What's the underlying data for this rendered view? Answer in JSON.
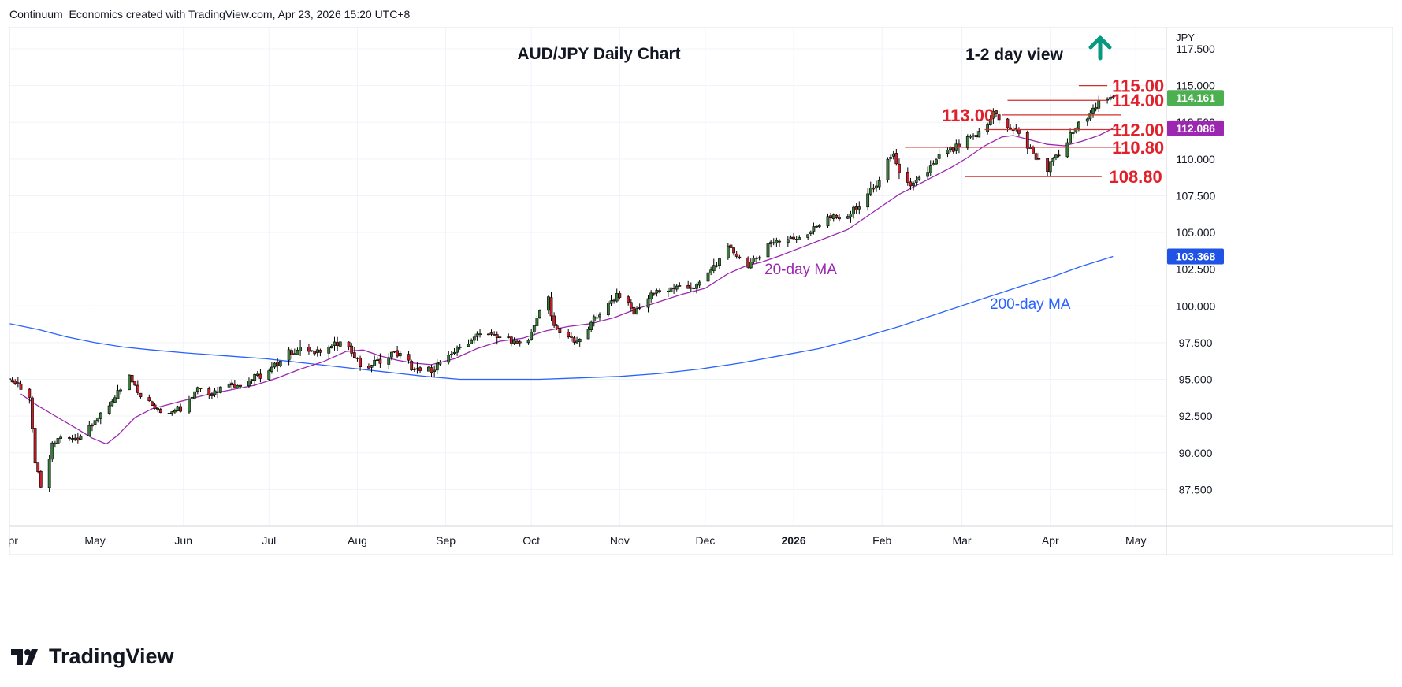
{
  "header": {
    "attribution": "Continuum_Economics created with TradingView.com, Apr 23, 2026 15:20 UTC+8"
  },
  "logo": {
    "text": "TradingView"
  },
  "colors": {
    "up": "#3a7d3a",
    "down": "#c8202a",
    "ma20": "#9c27b0",
    "ma200": "#2962ff",
    "level": "#e0202a",
    "arrow": "#089981",
    "last_price_bg": "#4caf50",
    "ma20_bg": "#9c27b0",
    "ma200_bg": "#1e53e5"
  },
  "chart_data": {
    "type": "candlestick",
    "title": "AUD/JPY Daily Chart",
    "view_label": "1-2 day view",
    "view_direction": "up",
    "currency_label": "JPY",
    "y_range": [
      85.0,
      119.0
    ],
    "y_ticks": [
      "117.500",
      "115.000",
      "112.500",
      "110.000",
      "107.500",
      "105.000",
      "102.500",
      "100.000",
      "97.500",
      "95.000",
      "92.500",
      "90.000",
      "87.500"
    ],
    "x_ticks": [
      "Apr",
      "May",
      "Jun",
      "Jul",
      "Aug",
      "Sep",
      "Oct",
      "Nov",
      "Dec",
      "2026",
      "Feb",
      "Mar",
      "Apr",
      "May"
    ],
    "x_tick_days": [
      0,
      30,
      61,
      91,
      122,
      153,
      183,
      214,
      244,
      275,
      306,
      334,
      365,
      395
    ],
    "last_date_day": 387,
    "levels": [
      {
        "label": "115.00",
        "value": 115.0,
        "start_day": 375
      },
      {
        "label": "114.00",
        "value": 114.0,
        "start_day": 350
      },
      {
        "label": "113.00",
        "value": 113.0,
        "start_day": 348
      },
      {
        "label": "112.00",
        "value": 112.0,
        "start_day": 342
      },
      {
        "label": "110.80",
        "value": 110.8,
        "start_day": 314
      },
      {
        "label": "108.80",
        "value": 108.8,
        "start_day": 335
      }
    ],
    "price_badges": [
      {
        "label": "114.161",
        "value": 114.161,
        "series": "last"
      },
      {
        "label": "112.086",
        "value": 112.086,
        "series": "ma20"
      },
      {
        "label": "103.368",
        "value": 103.368,
        "series": "ma200"
      }
    ],
    "annotations": {
      "ma20": "20-day MA",
      "ma200": "200-day MA"
    },
    "close_path": [
      [
        0,
        95.0
      ],
      [
        4,
        94.5
      ],
      [
        7,
        93.5
      ],
      [
        9,
        89.5
      ],
      [
        11,
        87.5
      ],
      [
        13,
        88.6
      ],
      [
        15,
        90.6
      ],
      [
        19,
        91.2
      ],
      [
        23,
        91.0
      ],
      [
        27,
        91.5
      ],
      [
        31,
        92.5
      ],
      [
        36,
        93.4
      ],
      [
        42,
        95.2
      ],
      [
        46,
        94.0
      ],
      [
        50,
        93.2
      ],
      [
        54,
        92.6
      ],
      [
        58,
        93.0
      ],
      [
        61,
        93.0
      ],
      [
        66,
        94.5
      ],
      [
        71,
        94.1
      ],
      [
        76,
        94.6
      ],
      [
        81,
        94.7
      ],
      [
        86,
        95.1
      ],
      [
        91,
        95.5
      ],
      [
        96,
        96.6
      ],
      [
        101,
        97.0
      ],
      [
        106,
        96.8
      ],
      [
        111,
        97.2
      ],
      [
        116,
        97.4
      ],
      [
        121,
        96.8
      ],
      [
        124,
        95.5
      ],
      [
        127,
        96.0
      ],
      [
        132,
        96.6
      ],
      [
        137,
        96.8
      ],
      [
        142,
        95.6
      ],
      [
        145,
        95.4
      ],
      [
        150,
        96.0
      ],
      [
        155,
        96.8
      ],
      [
        160,
        97.4
      ],
      [
        165,
        98.1
      ],
      [
        170,
        97.9
      ],
      [
        175,
        97.6
      ],
      [
        180,
        97.4
      ],
      [
        183,
        98.0
      ],
      [
        187,
        100.4
      ],
      [
        189,
        100.6
      ],
      [
        191,
        98.5
      ],
      [
        195,
        98.0
      ],
      [
        199,
        97.6
      ],
      [
        203,
        98.5
      ],
      [
        207,
        99.5
      ],
      [
        211,
        100.3
      ],
      [
        215,
        100.9
      ],
      [
        219,
        99.5
      ],
      [
        222,
        100.1
      ],
      [
        226,
        100.9
      ],
      [
        230,
        101.0
      ],
      [
        234,
        101.4
      ],
      [
        238,
        101.1
      ],
      [
        242,
        101.7
      ],
      [
        247,
        102.6
      ],
      [
        252,
        103.9
      ],
      [
        256,
        103.4
      ],
      [
        259,
        102.6
      ],
      [
        263,
        103.5
      ],
      [
        267,
        104.4
      ],
      [
        271,
        104.5
      ],
      [
        275,
        104.6
      ],
      [
        279,
        104.8
      ],
      [
        283,
        105.4
      ],
      [
        287,
        106.0
      ],
      [
        291,
        105.9
      ],
      [
        295,
        106.4
      ],
      [
        299,
        107.0
      ],
      [
        302,
        107.9
      ],
      [
        306,
        108.6
      ],
      [
        308,
        109.9
      ],
      [
        310,
        110.4
      ],
      [
        312,
        108.8
      ],
      [
        316,
        108.0
      ],
      [
        320,
        108.8
      ],
      [
        324,
        109.6
      ],
      [
        327,
        110.4
      ],
      [
        331,
        110.6
      ],
      [
        335,
        111.2
      ],
      [
        339,
        111.6
      ],
      [
        343,
        112.3
      ],
      [
        345,
        113.4
      ],
      [
        347,
        112.6
      ],
      [
        350,
        112.2
      ],
      [
        353,
        111.9
      ],
      [
        356,
        111.0
      ],
      [
        359,
        110.4
      ],
      [
        362,
        109.5
      ],
      [
        364,
        109.3
      ],
      [
        366,
        109.9
      ],
      [
        369,
        110.5
      ],
      [
        372,
        111.6
      ],
      [
        375,
        112.4
      ],
      [
        378,
        113.0
      ],
      [
        380,
        113.6
      ],
      [
        383,
        113.9
      ],
      [
        385,
        114.0
      ],
      [
        387,
        114.16
      ]
    ],
    "ma20_path": [
      [
        4,
        94.0
      ],
      [
        10,
        93.2
      ],
      [
        17,
        92.4
      ],
      [
        24,
        91.6
      ],
      [
        29,
        91.0
      ],
      [
        34,
        90.6
      ],
      [
        38,
        91.2
      ],
      [
        44,
        92.4
      ],
      [
        50,
        93.0
      ],
      [
        56,
        93.3
      ],
      [
        62,
        93.6
      ],
      [
        70,
        94.0
      ],
      [
        78,
        94.3
      ],
      [
        86,
        94.6
      ],
      [
        94,
        95.1
      ],
      [
        102,
        95.7
      ],
      [
        110,
        96.2
      ],
      [
        118,
        96.9
      ],
      [
        124,
        97.0
      ],
      [
        130,
        96.6
      ],
      [
        136,
        96.3
      ],
      [
        142,
        96.1
      ],
      [
        148,
        96.0
      ],
      [
        156,
        96.4
      ],
      [
        164,
        97.1
      ],
      [
        172,
        97.6
      ],
      [
        180,
        97.8
      ],
      [
        188,
        98.3
      ],
      [
        196,
        98.6
      ],
      [
        204,
        98.8
      ],
      [
        212,
        99.2
      ],
      [
        220,
        99.8
      ],
      [
        228,
        100.3
      ],
      [
        236,
        100.8
      ],
      [
        244,
        101.2
      ],
      [
        252,
        102.2
      ],
      [
        258,
        102.7
      ],
      [
        264,
        103.0
      ],
      [
        270,
        103.4
      ],
      [
        278,
        104.0
      ],
      [
        286,
        104.6
      ],
      [
        294,
        105.2
      ],
      [
        300,
        106.0
      ],
      [
        306,
        106.8
      ],
      [
        312,
        107.6
      ],
      [
        318,
        108.2
      ],
      [
        324,
        108.8
      ],
      [
        330,
        109.4
      ],
      [
        336,
        110.1
      ],
      [
        342,
        110.9
      ],
      [
        348,
        111.5
      ],
      [
        352,
        111.6
      ],
      [
        358,
        111.3
      ],
      [
        364,
        111.0
      ],
      [
        370,
        110.9
      ],
      [
        376,
        111.2
      ],
      [
        382,
        111.6
      ],
      [
        387,
        112.09
      ]
    ],
    "ma200_path": [
      [
        0,
        98.8
      ],
      [
        10,
        98.4
      ],
      [
        20,
        97.9
      ],
      [
        30,
        97.5
      ],
      [
        40,
        97.2
      ],
      [
        50,
        97.0
      ],
      [
        62,
        96.8
      ],
      [
        76,
        96.6
      ],
      [
        90,
        96.4
      ],
      [
        104,
        96.1
      ],
      [
        118,
        95.8
      ],
      [
        132,
        95.5
      ],
      [
        146,
        95.2
      ],
      [
        158,
        95.0
      ],
      [
        172,
        95.0
      ],
      [
        186,
        95.0
      ],
      [
        200,
        95.1
      ],
      [
        214,
        95.2
      ],
      [
        228,
        95.4
      ],
      [
        242,
        95.7
      ],
      [
        256,
        96.1
      ],
      [
        270,
        96.6
      ],
      [
        284,
        97.1
      ],
      [
        298,
        97.8
      ],
      [
        312,
        98.6
      ],
      [
        326,
        99.5
      ],
      [
        340,
        100.4
      ],
      [
        354,
        101.3
      ],
      [
        366,
        102.0
      ],
      [
        376,
        102.7
      ],
      [
        387,
        103.37
      ]
    ]
  }
}
